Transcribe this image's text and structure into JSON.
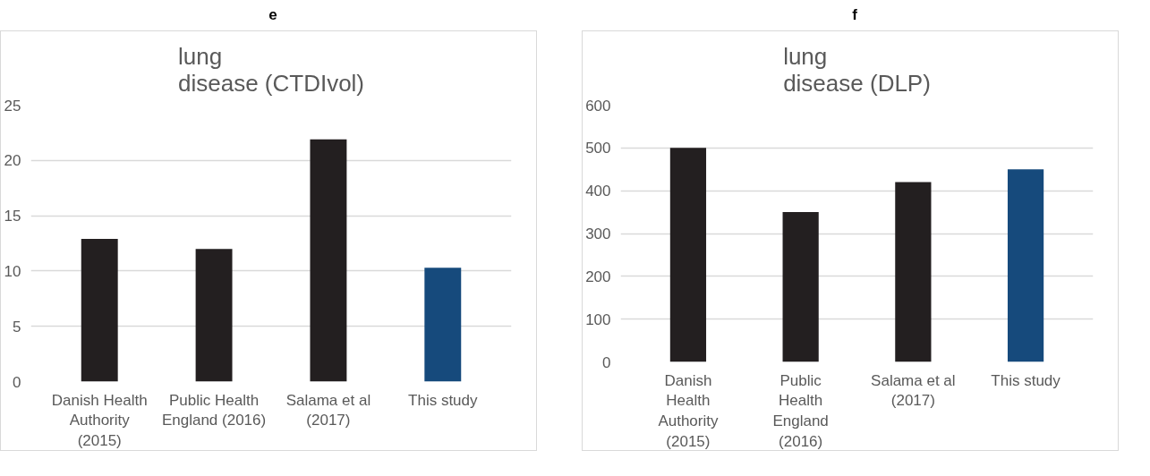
{
  "chart_data": [
    {
      "type": "bar",
      "title": "lung\ndisease (CTDIvol)",
      "annotations": [
        "e"
      ],
      "categories": [
        "Danish Health Authority (2015)",
        "Public Health England (2016)",
        "Salama et al (2017)",
        "This study"
      ],
      "values": [
        12.9,
        12,
        21.9,
        10.3
      ],
      "colors": [
        "#231f20",
        "#231f20",
        "#231f20",
        "#164a7c"
      ],
      "ylim": [
        0,
        25
      ],
      "yticks": [
        0,
        5,
        10,
        15,
        20,
        25
      ],
      "grid": "y"
    },
    {
      "type": "bar",
      "title": "lung\ndisease (DLP)",
      "annotations": [
        "f"
      ],
      "categories": [
        "Danish Health Authority (2015)",
        "Public Health England (2016)",
        "Salama et al (2017)",
        "This study"
      ],
      "values": [
        500,
        350,
        420,
        450
      ],
      "colors": [
        "#231f20",
        "#231f20",
        "#231f20",
        "#164a7c"
      ],
      "ylim": [
        0,
        600
      ],
      "yticks": [
        0,
        100,
        200,
        300,
        400,
        500,
        600
      ],
      "grid": "y"
    }
  ]
}
